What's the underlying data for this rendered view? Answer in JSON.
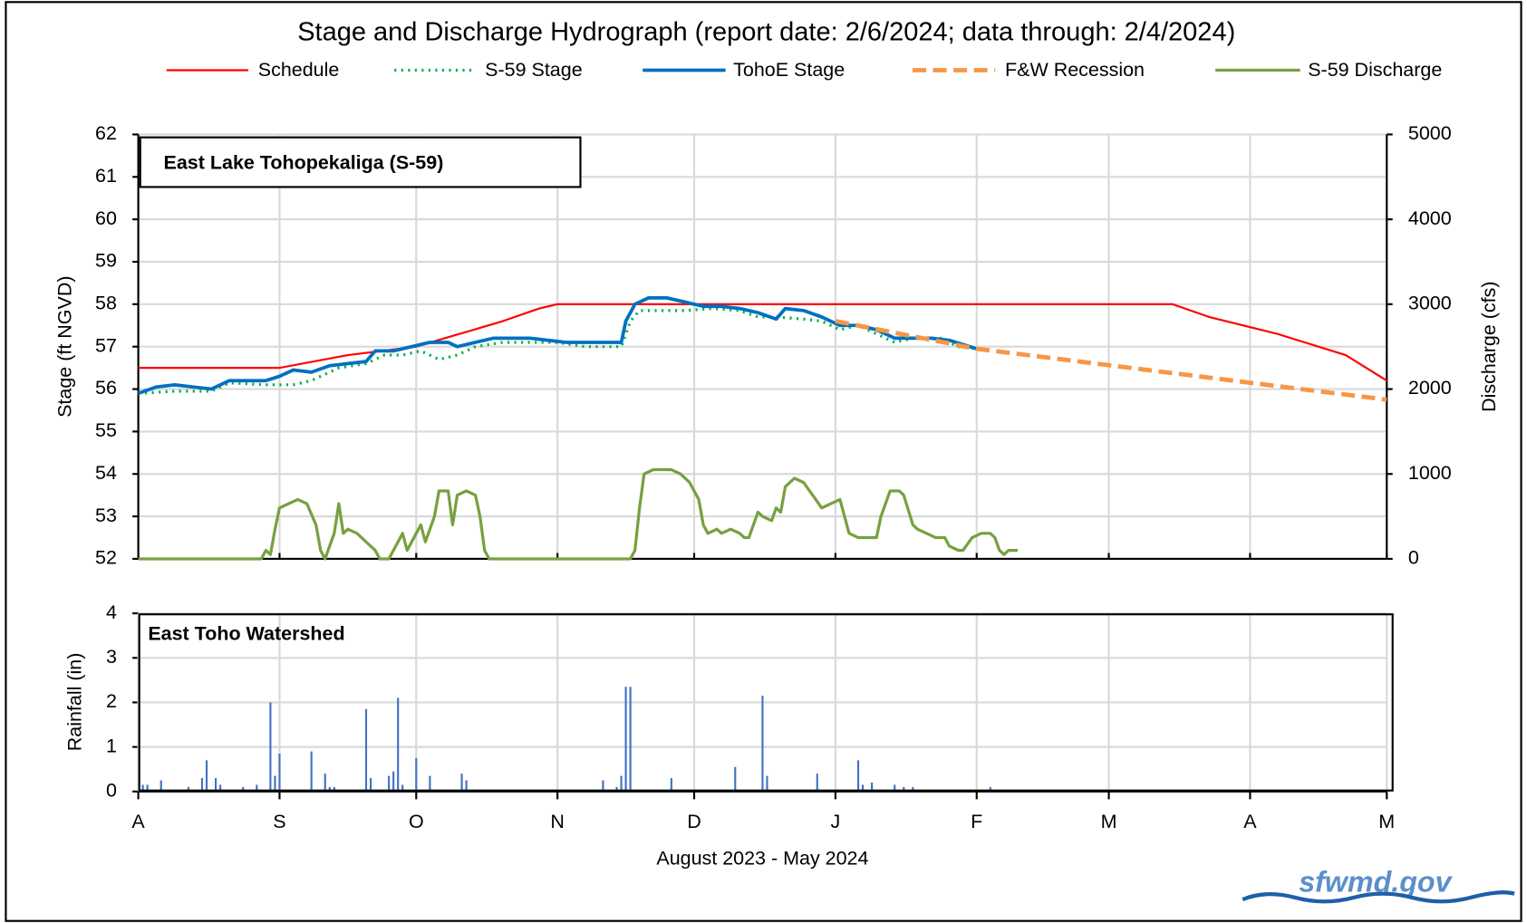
{
  "title": "Stage and Discharge Hydrograph  (report date: 2/6/2024; data through: 2/4/2024)",
  "logo": "sfwmd.gov",
  "chart_data": [
    {
      "type": "line",
      "annotation": "East Lake Tohopekaliga  (S-59)",
      "ylabel": "Stage (ft NGVD)",
      "y2label": "Discharge (cfs)",
      "xlim": [
        0,
        274
      ],
      "ylim": [
        52,
        62
      ],
      "yticks": [
        52,
        53,
        54,
        55,
        56,
        57,
        58,
        59,
        60,
        61,
        62
      ],
      "y2lim": [
        0,
        5000
      ],
      "y2ticks": [
        0,
        1000,
        2000,
        3000,
        4000,
        5000
      ],
      "grid": true,
      "series": [
        {
          "name": "Schedule",
          "color": "#ff0000",
          "style": "solid",
          "width": 2,
          "x": [
            0,
            31,
            46,
            61,
            80,
            88,
            92,
            227,
            235,
            250,
            265,
            274
          ],
          "values": [
            56.5,
            56.5,
            56.8,
            57.0,
            57.6,
            57.9,
            58,
            58,
            57.7,
            57.3,
            56.8,
            56.2
          ]
        },
        {
          "name": "S-59 Stage",
          "color": "#00b050",
          "style": "dotted",
          "width": 3,
          "x": [
            0,
            8,
            16,
            20,
            28,
            34,
            38,
            44,
            50,
            54,
            58,
            62,
            66,
            70,
            74,
            80,
            86,
            92,
            98,
            106,
            108,
            110,
            116,
            120,
            126,
            132,
            136,
            140,
            146,
            150,
            154,
            158,
            162,
            166,
            170,
            176,
            180,
            184
          ],
          "values": [
            55.9,
            55.95,
            55.95,
            56.15,
            56.1,
            56.1,
            56.2,
            56.5,
            56.6,
            56.8,
            56.8,
            56.9,
            56.7,
            56.8,
            57.0,
            57.1,
            57.1,
            57.1,
            57.0,
            57.0,
            57.6,
            57.85,
            57.85,
            57.85,
            57.9,
            57.85,
            57.7,
            57.7,
            57.65,
            57.6,
            57.4,
            57.5,
            57.3,
            57.1,
            57.2,
            57.2,
            57.0,
            56.95
          ]
        },
        {
          "name": "TohoE Stage",
          "color": "#0070c0",
          "style": "solid",
          "width": 3.5,
          "x": [
            0,
            4,
            8,
            12,
            16,
            20,
            24,
            28,
            31,
            34,
            38,
            42,
            46,
            50,
            52,
            56,
            60,
            64,
            68,
            70,
            74,
            78,
            82,
            86,
            90,
            94,
            98,
            102,
            106,
            107,
            109,
            112,
            116,
            120,
            124,
            128,
            132,
            136,
            140,
            142,
            146,
            150,
            154,
            158,
            162,
            166,
            170,
            174,
            178,
            184
          ],
          "values": [
            55.9,
            56.05,
            56.1,
            56.05,
            56.0,
            56.2,
            56.2,
            56.2,
            56.3,
            56.45,
            56.4,
            56.55,
            56.6,
            56.65,
            56.9,
            56.9,
            57.0,
            57.1,
            57.1,
            57.0,
            57.1,
            57.2,
            57.2,
            57.2,
            57.15,
            57.1,
            57.1,
            57.1,
            57.1,
            57.6,
            58.0,
            58.15,
            58.15,
            58.05,
            57.95,
            57.95,
            57.9,
            57.8,
            57.65,
            57.9,
            57.85,
            57.7,
            57.5,
            57.5,
            57.4,
            57.2,
            57.2,
            57.2,
            57.15,
            56.95
          ]
        },
        {
          "name": "F&W Recession",
          "color": "#f79646",
          "style": "dashed",
          "width": 4.5,
          "x": [
            153,
            184,
            274
          ],
          "values": [
            57.6,
            56.95,
            55.75
          ]
        },
        {
          "name": "S-59 Discharge",
          "color": "#77a040",
          "style": "solid",
          "width": 3,
          "axis": "y2",
          "x": [
            0,
            27,
            28,
            29,
            30,
            31,
            33,
            35,
            37,
            39,
            40,
            41,
            43,
            44,
            45,
            46,
            48,
            50,
            52,
            53,
            55,
            57,
            58,
            59,
            61,
            62,
            63,
            65,
            66,
            68,
            69,
            70,
            72,
            74,
            75,
            76,
            77,
            108,
            109,
            110,
            111,
            113,
            117,
            119,
            121,
            123,
            124,
            125,
            127,
            128,
            130,
            132,
            133,
            134,
            136,
            137,
            139,
            140,
            141,
            142,
            144,
            146,
            148,
            150,
            152,
            154,
            155,
            156,
            158,
            160,
            162,
            163,
            165,
            167,
            168,
            170,
            171,
            173,
            175,
            177,
            178,
            180,
            181,
            183,
            185,
            187,
            188,
            189,
            190,
            191,
            193
          ],
          "values": [
            0,
            0,
            100,
            50,
            350,
            600,
            650,
            700,
            650,
            400,
            100,
            0,
            300,
            650,
            300,
            350,
            300,
            200,
            100,
            0,
            0,
            200,
            300,
            100,
            300,
            400,
            200,
            500,
            800,
            800,
            400,
            750,
            800,
            750,
            500,
            100,
            0,
            0,
            100,
            600,
            1000,
            1050,
            1050,
            1000,
            900,
            700,
            400,
            300,
            350,
            300,
            350,
            300,
            250,
            250,
            550,
            500,
            450,
            600,
            550,
            850,
            950,
            900,
            750,
            600,
            650,
            700,
            500,
            300,
            250,
            250,
            250,
            500,
            800,
            800,
            750,
            400,
            350,
            300,
            250,
            250,
            150,
            100,
            100,
            250,
            300,
            300,
            250,
            100,
            50,
            100,
            100
          ]
        }
      ]
    },
    {
      "type": "bar",
      "annotation": "East Toho Watershed",
      "ylabel": "Rainfall (in)",
      "xlabel": "August 2023 - May 2024",
      "color": "#4472c4",
      "xlim": [
        0,
        274
      ],
      "xticks": [
        {
          "value": 0,
          "label": "A"
        },
        {
          "value": 31,
          "label": "S"
        },
        {
          "value": 61,
          "label": "O"
        },
        {
          "value": 92,
          "label": "N"
        },
        {
          "value": 122,
          "label": "D"
        },
        {
          "value": 153,
          "label": "J"
        },
        {
          "value": 184,
          "label": "F"
        },
        {
          "value": 213,
          "label": "M"
        },
        {
          "value": 244,
          "label": "A"
        },
        {
          "value": 274,
          "label": "M"
        }
      ],
      "ylim": [
        0,
        4
      ],
      "yticks": [
        0,
        1,
        2,
        3,
        4
      ],
      "grid": true,
      "x": [
        1,
        2,
        5,
        11,
        14,
        15,
        17,
        18,
        23,
        26,
        29,
        30,
        31,
        38,
        41,
        42,
        43,
        50,
        51,
        55,
        56,
        57,
        58,
        61,
        64,
        71,
        72,
        102,
        105,
        106,
        107,
        108,
        117,
        131,
        137,
        138,
        149,
        158,
        159,
        161,
        166,
        168,
        170,
        187
      ],
      "values": [
        0.15,
        0.15,
        0.25,
        0.1,
        0.3,
        0.7,
        0.3,
        0.15,
        0.1,
        0.15,
        2.0,
        0.35,
        0.85,
        0.9,
        0.4,
        0.1,
        0.1,
        1.85,
        0.3,
        0.35,
        0.45,
        2.1,
        0.15,
        0.75,
        0.35,
        0.4,
        0.25,
        0.25,
        0.1,
        0.35,
        2.35,
        2.35,
        0.3,
        0.55,
        2.15,
        0.35,
        0.4,
        0.7,
        0.15,
        0.2,
        0.15,
        0.1,
        0.1,
        0.1
      ]
    }
  ]
}
